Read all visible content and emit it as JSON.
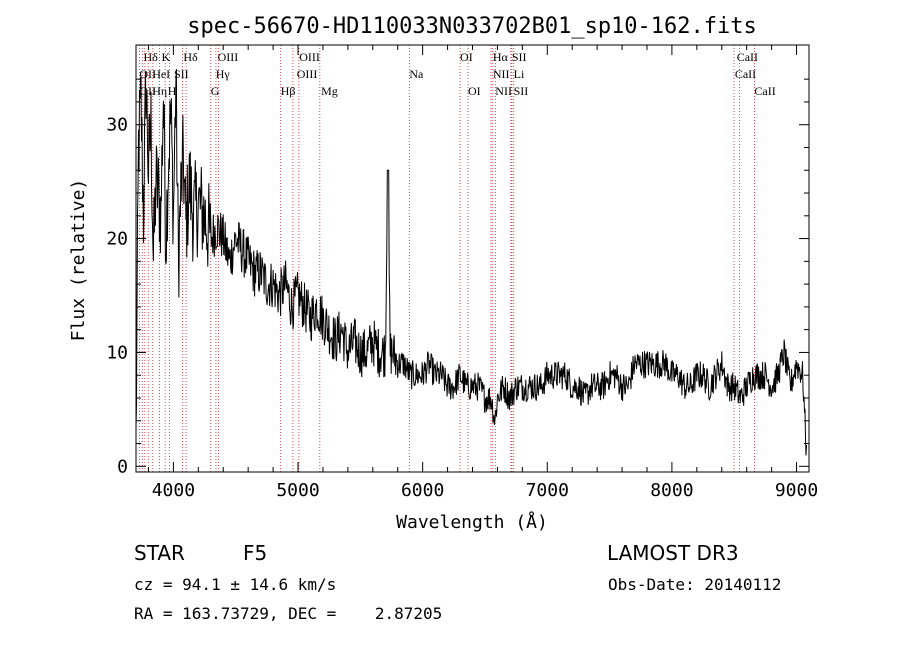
{
  "title": "spec-56670-HD110033N033702B01_sp10-162.fits",
  "info": {
    "object_class": "STAR",
    "subclass": "F5",
    "survey": "LAMOST DR3",
    "cz": "cz = 94.1 ± 14.6 km/s",
    "obs_date": "Obs-Date: 20140112",
    "coords": "RA = 163.73729, DEC =    2.87205"
  },
  "colors": {
    "line_marker": "#cc2222",
    "spectrum": "#000000"
  },
  "chart_data": {
    "type": "line",
    "xlabel": "Wavelength (Å)",
    "ylabel": "Flux (relative)",
    "xlim": [
      3700,
      9100
    ],
    "ylim": [
      -0.5,
      37
    ],
    "xticks": [
      4000,
      5000,
      6000,
      7000,
      8000,
      9000
    ],
    "yticks": [
      0,
      10,
      20,
      30
    ],
    "series": [
      {
        "name": "flux",
        "x": [
          3700,
          3720,
          3740,
          3760,
          3780,
          3800,
          3820,
          3840,
          3860,
          3880,
          3900,
          3920,
          3940,
          3960,
          3980,
          4000,
          4020,
          4040,
          4060,
          4080,
          4100,
          4130,
          4160,
          4200,
          4250,
          4300,
          4350,
          4400,
          4450,
          4500,
          4550,
          4600,
          4650,
          4700,
          4750,
          4800,
          4850,
          4900,
          4950,
          5000,
          5050,
          5100,
          5150,
          5200,
          5250,
          5300,
          5350,
          5400,
          5450,
          5500,
          5550,
          5600,
          5650,
          5700,
          5720,
          5740,
          5760,
          5800,
          5850,
          5900,
          5950,
          6000,
          6050,
          6100,
          6150,
          6200,
          6250,
          6300,
          6350,
          6400,
          6450,
          6500,
          6550,
          6580,
          6600,
          6650,
          6700,
          6750,
          6800,
          6850,
          6900,
          6950,
          7000,
          7050,
          7100,
          7150,
          7200,
          7250,
          7300,
          7350,
          7400,
          7450,
          7500,
          7550,
          7600,
          7650,
          7700,
          7750,
          7800,
          7850,
          7900,
          7950,
          8000,
          8050,
          8100,
          8150,
          8200,
          8250,
          8300,
          8350,
          8400,
          8450,
          8500,
          8550,
          8600,
          8650,
          8700,
          8750,
          8800,
          8850,
          8900,
          8950,
          9000,
          9050,
          9080
        ],
        "y": [
          2,
          28,
          32,
          22,
          34,
          26,
          30,
          18,
          25,
          24,
          22,
          33,
          20,
          27,
          31,
          22,
          34,
          18,
          24,
          27,
          21,
          25,
          22,
          23,
          22,
          20,
          21,
          20,
          18,
          20,
          19,
          18,
          17,
          17,
          16,
          16,
          15,
          16,
          14,
          15,
          14,
          13,
          14,
          13,
          12,
          11,
          12,
          10,
          11,
          10,
          10,
          11,
          10,
          10,
          26,
          10,
          10,
          9,
          9,
          8,
          8,
          8,
          9,
          8,
          8,
          7,
          7,
          8,
          7,
          7,
          7,
          6,
          6,
          4,
          6,
          7,
          6,
          7,
          7,
          7,
          7,
          7,
          8,
          8,
          8,
          8,
          7,
          7,
          6,
          7,
          7,
          7,
          8,
          8,
          7,
          7,
          9,
          9,
          9,
          9,
          9,
          9,
          8,
          8,
          7,
          7,
          8,
          8,
          7,
          8,
          9,
          7,
          7,
          6,
          7,
          8,
          8,
          8,
          7,
          8,
          10,
          7,
          9,
          8,
          1
        ]
      }
    ],
    "lines_top": [
      "Hδ",
      "K",
      "Hδ",
      "OIII",
      "OIII",
      "OI",
      "Hα",
      "SII",
      "CaII"
    ],
    "lines_mid": [
      "OII",
      "HeI",
      "SII",
      "Hγ",
      "OIII",
      "Na",
      "NII",
      "Li",
      "CaII"
    ],
    "lines_bot": [
      "OII",
      "Hη",
      "H",
      "G",
      "Hβ",
      "Mg",
      "OI",
      "NII",
      "SII",
      "CaII"
    ],
    "line_wavelengths": [
      3727,
      3750,
      3771,
      3798,
      3835,
      3889,
      3934,
      3969,
      4072,
      4102,
      4300,
      4341,
      4363,
      4861,
      4959,
      5007,
      5175,
      5893,
      6300,
      6364,
      6548,
      6563,
      6583,
      6708,
      6716,
      6731,
      8498,
      8542,
      8662
    ]
  }
}
